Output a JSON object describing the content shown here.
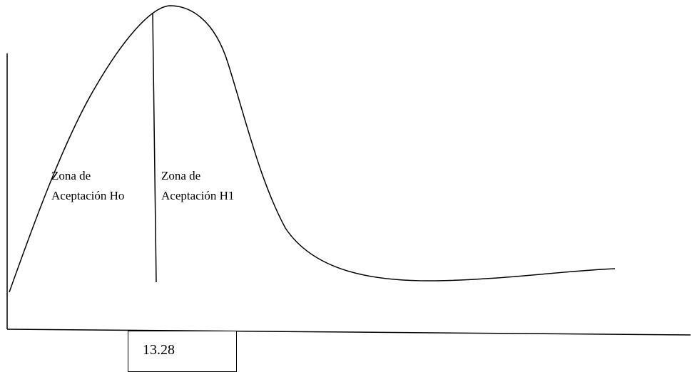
{
  "zones": {
    "h0": {
      "line1": "Zona de",
      "line2": "Aceptación Ho"
    },
    "h1": {
      "line1": "Zona de",
      "line2": "Aceptación H1"
    }
  },
  "critical_value": "13.28",
  "colors": {
    "stroke": "#000000",
    "background": "#ffffff"
  }
}
